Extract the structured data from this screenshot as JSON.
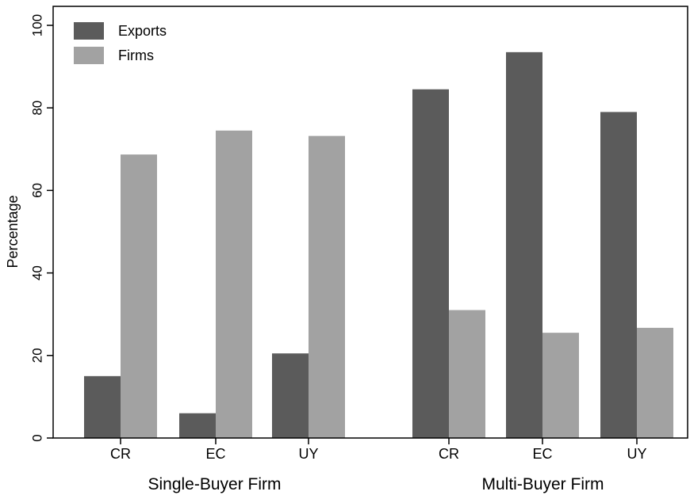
{
  "chart_data": {
    "type": "bar",
    "title": "",
    "xlabel": "",
    "ylabel": "Percentage",
    "ylim": [
      0,
      100
    ],
    "yticks": [
      0,
      20,
      40,
      60,
      80,
      100
    ],
    "grid": false,
    "legend_position": "top-left",
    "groups": [
      {
        "label": "Single-Buyer Firm",
        "categories": [
          "CR",
          "EC",
          "UY"
        ]
      },
      {
        "label": "Multi-Buyer Firm",
        "categories": [
          "CR",
          "EC",
          "UY"
        ]
      }
    ],
    "series": [
      {
        "name": "Exports",
        "color": "#5b5b5b",
        "values": [
          15,
          6,
          20.5,
          84.5,
          93.5,
          79
        ]
      },
      {
        "name": "Firms",
        "color": "#a2a2a2",
        "values": [
          68.7,
          74.5,
          73.2,
          31,
          25.5,
          26.7
        ]
      }
    ]
  }
}
